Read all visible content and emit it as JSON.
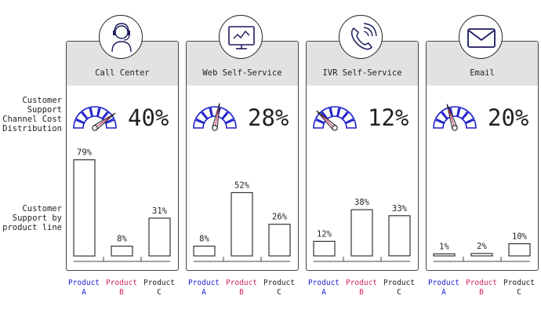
{
  "row_labels": {
    "distribution": "Customer\nSupport\nChannel Cost\nDistribution",
    "by_product": "Customer\nSupport by\nproduct line"
  },
  "colors": {
    "gauge": "#1f1fcc",
    "needle": "#cc1155",
    "product_a": "#1a1ad6",
    "product_b": "#d42458",
    "product_c": "#222222"
  },
  "chart_data": [
    {
      "type": "bar",
      "title": "Call Center",
      "icon": "headset-agent-icon",
      "share": "40%",
      "share_value": 40,
      "categories": [
        "Product A",
        "Product B",
        "Product C"
      ],
      "values": [
        79,
        8,
        31
      ],
      "value_labels": [
        "79%",
        "8%",
        "31%"
      ],
      "ylim": [
        0,
        100
      ]
    },
    {
      "type": "bar",
      "title": "Web Self-Service",
      "icon": "monitor-chart-icon",
      "share": "28%",
      "share_value": 28,
      "categories": [
        "Product A",
        "Product B",
        "Product C"
      ],
      "values": [
        8,
        52,
        26
      ],
      "value_labels": [
        "8%",
        "52%",
        "26%"
      ],
      "ylim": [
        0,
        100
      ]
    },
    {
      "type": "bar",
      "title": "IVR Self-Service",
      "icon": "phone-ringing-icon",
      "share": "12%",
      "share_value": 12,
      "categories": [
        "Product A",
        "Product B",
        "Product C"
      ],
      "values": [
        12,
        38,
        33
      ],
      "value_labels": [
        "12%",
        "38%",
        "33%"
      ],
      "ylim": [
        0,
        100
      ]
    },
    {
      "type": "bar",
      "title": "Email",
      "icon": "envelope-icon",
      "share": "20%",
      "share_value": 20,
      "categories": [
        "Product A",
        "Product B",
        "Product C"
      ],
      "values": [
        1,
        2,
        10
      ],
      "value_labels": [
        "1%",
        "2%",
        "10%"
      ],
      "ylim": [
        0,
        100
      ]
    }
  ],
  "product_labels": [
    "Product\nA",
    "Product\nB",
    "Product\nC"
  ]
}
